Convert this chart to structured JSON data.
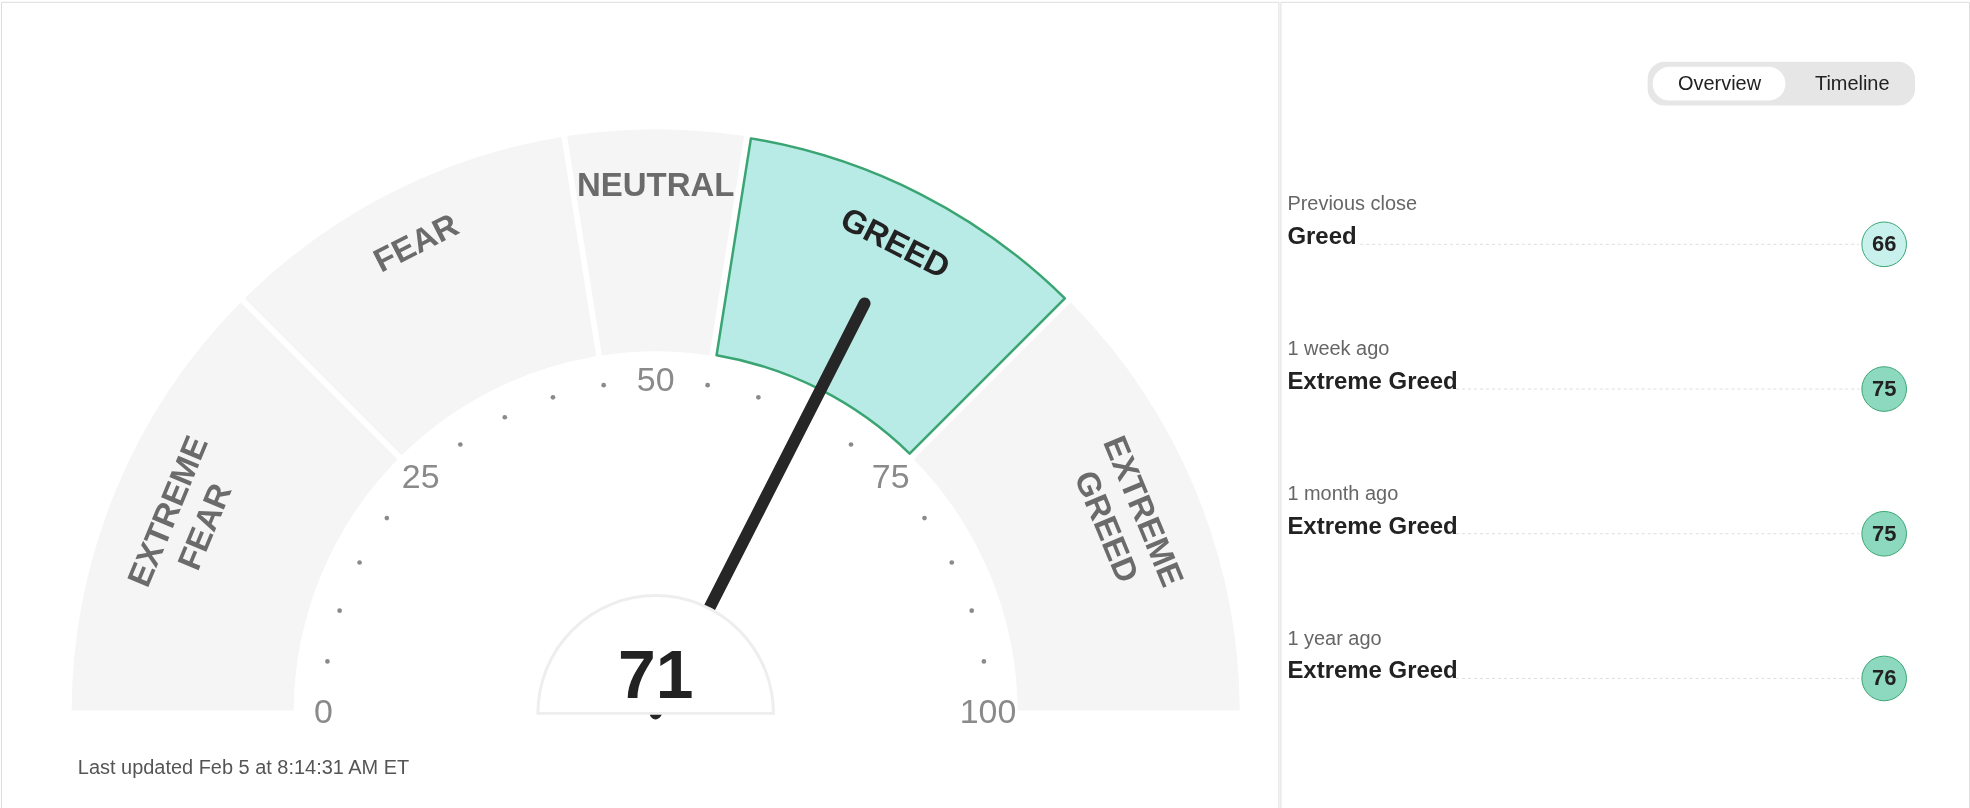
{
  "chart_data": [
    {
      "type": "donut",
      "categories": [
        "EXTREME FEAR",
        "FEAR",
        "NEUTRAL",
        "GREED",
        "EXTREME GREED"
      ],
      "values": [
        25,
        20,
        10,
        20,
        25
      ],
      "colors": [
        "#f5f5f5",
        "#f5f5f5",
        "#f5f5f5",
        "#b8ebe6",
        "#f5f5f5"
      ],
      "needle": "GREED",
      "annotations": [
        "71",
        "Last updated Feb 5 at 8:14:31 AM ET",
        "0",
        "25",
        "50",
        "75",
        "100"
      ]
    },
    {
      "type": "other",
      "categories": [
        "Previous close",
        "1 week ago",
        "1 month ago",
        "1 year ago"
      ],
      "values": [
        66,
        75,
        75,
        76
      ],
      "colors": [
        "#c8f1ed",
        "#8dd9c0",
        "#8dd9c0",
        "#8dd9c0"
      ],
      "data_labels": true,
      "annotations": [
        {
          "text": "Greed",
          "x": "Previous close"
        },
        {
          "text": "Extreme Greed",
          "x": "1 week ago"
        },
        {
          "text": "Extreme Greed",
          "x": "1 month ago"
        },
        {
          "text": "Extreme Greed",
          "x": "1 year ago"
        },
        "Overview",
        "Timeline"
      ]
    }
  ]
}
